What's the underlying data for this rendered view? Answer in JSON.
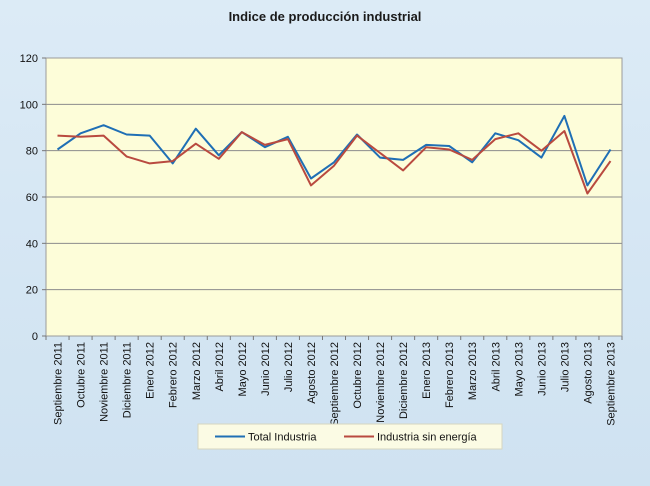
{
  "chart_data": {
    "type": "line",
    "title": "Indice de producción industrial",
    "categories": [
      "Septiembre 2011",
      "Octubre 2011",
      "Noviembre 2011",
      "Diciembre 2011",
      "Enero 2012",
      "Febrero 2012",
      "Marzo 2012",
      "Abril 2012",
      "Mayo 2012",
      "Junio 2012",
      "Julio 2012",
      "Agosto 2012",
      "Septiembre 2012",
      "Octubre 2012",
      "Noviembre 2012",
      "Diciembre 2012",
      "Enero 2013",
      "Febrero 2013",
      "Marzo 2013",
      "Abril 2013",
      "Mayo 2013",
      "Junio 2013",
      "Julio 2013",
      "Agosto 2013",
      "Septiembre 2013"
    ],
    "series": [
      {
        "name": "Total Industria",
        "color": "#1f6fb5",
        "values": [
          80.5,
          87.5,
          91,
          87,
          86.5,
          74.5,
          89.5,
          78,
          88,
          81.5,
          86,
          68,
          75,
          87,
          77,
          76,
          82.5,
          82,
          75,
          87.5,
          84.5,
          77,
          95,
          65,
          80.5
        ]
      },
      {
        "name": "Industria sin energía",
        "color": "#b94a3f",
        "values": [
          86.5,
          86,
          86.5,
          77.5,
          74.5,
          75.5,
          83,
          76.5,
          88,
          82.5,
          85,
          65,
          73.5,
          86.5,
          79,
          71.5,
          81.5,
          80.5,
          76,
          85,
          87.5,
          80,
          88.5,
          61.5,
          75.5
        ]
      }
    ],
    "ylim": [
      0,
      120
    ],
    "yticks": [
      0,
      20,
      40,
      60,
      80,
      100,
      120
    ],
    "grid": true,
    "legend": "bottom-center",
    "plot_bg": "#fdfdd9"
  }
}
